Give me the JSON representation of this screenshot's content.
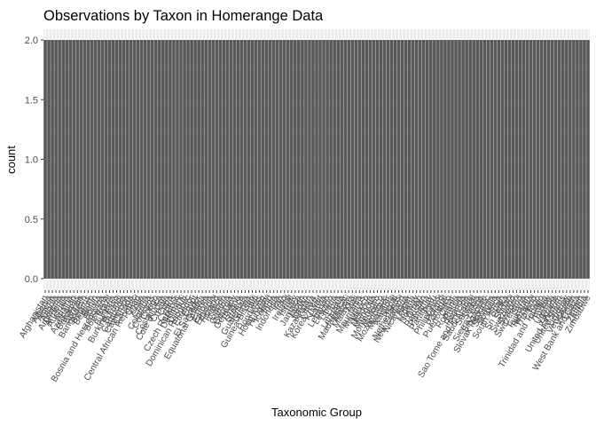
{
  "chart_data": {
    "type": "bar",
    "title": "Observations by Taxon in Homerange Data",
    "xlabel": "Taxonomic Group",
    "ylabel": "count",
    "ylim": [
      0,
      2
    ],
    "yticks": [
      "0.0",
      "0.5",
      "1.0",
      "1.5",
      "2.0"
    ],
    "grid": true,
    "categories": [
      "Afghanistan",
      "Albania",
      "Algeria",
      "Angola",
      "Argentina",
      "Armenia",
      "Australia",
      "Austria",
      "Azerbaijan",
      "Bahamas",
      "Bahrain",
      "Bangladesh",
      "Belarus",
      "Belgium",
      "Benin",
      "Bolivia",
      "Bosnia and Herzegovina",
      "Botswana",
      "Brazil",
      "Bulgaria",
      "Burkina Faso",
      "Burundi",
      "Cambodia",
      "Cameroon",
      "Canada",
      "Central African Republic",
      "Chad",
      "Chile",
      "China",
      "Colombia",
      "Comoros",
      "Congo",
      "Costa Rica",
      "Cote d'Ivoire",
      "Croatia",
      "Cuba",
      "Cyprus",
      "Czech Republic",
      "Denmark",
      "Djibouti",
      "Dominican Republic",
      "Ecuador",
      "Egypt",
      "El Salvador",
      "Equatorial Guinea",
      "Eritrea",
      "Estonia",
      "Ethiopia",
      "Finland",
      "France",
      "Gabon",
      "Gambia",
      "Georgia",
      "Germany",
      "Ghana",
      "Greece",
      "Guatemala",
      "Guinea",
      "Guinea-Bissau",
      "Haiti",
      "Honduras",
      "Hong Kong",
      "Hungary",
      "Iceland",
      "India",
      "Indonesia",
      "Iran",
      "Iraq",
      "Ireland",
      "Israel",
      "Italy",
      "Jamaica",
      "Japan",
      "Jordan",
      "Kazakhstan",
      "Kenya",
      "Korea, Rep.",
      "Kuwait",
      "Latvia",
      "Lebanon",
      "Lesotho",
      "Liberia",
      "Libya",
      "Lithuania",
      "Madagascar",
      "Malawi",
      "Malaysia",
      "Mali",
      "Mauritania",
      "Mauritius",
      "Mexico",
      "Moldova",
      "Mongolia",
      "Montenegro",
      "Morocco",
      "Mozambique",
      "Myanmar",
      "Namibia",
      "Nepal",
      "Netherlands",
      "New Zealand",
      "Nicaragua",
      "Niger",
      "Nigeria",
      "Norway",
      "Oman",
      "Pakistan",
      "Panama",
      "Paraguay",
      "Peru",
      "Philippines",
      "Poland",
      "Portugal",
      "Puerto Rico",
      "Qatar",
      "Romania",
      "Russia",
      "Rwanda",
      "Sao Tome and Principe",
      "Saudi Arabia",
      "Senegal",
      "Serbia",
      "Sierra Leone",
      "Singapore",
      "Slovak Republic",
      "Slovenia",
      "Somalia",
      "South Africa",
      "Spain",
      "Sri Lanka",
      "Sudan",
      "Swaziland",
      "Sweden",
      "Switzerland",
      "Syria",
      "Tajikistan",
      "Tanzania",
      "Thailand",
      "Togo",
      "Trinidad and Tobago",
      "Tunisia",
      "Turkey",
      "Uganda",
      "Ukraine",
      "United Kingdom",
      "United States",
      "Uruguay",
      "Venezuela",
      "Vietnam",
      "West Bank and Gaza",
      "Yemen",
      "Zambia",
      "Zimbabwe"
    ],
    "values": [
      2,
      2,
      2,
      2,
      2,
      2,
      2,
      2,
      2,
      2,
      2,
      2,
      2,
      2,
      2,
      2,
      2,
      2,
      2,
      2,
      2,
      2,
      2,
      2,
      2,
      2,
      2,
      2,
      2,
      2,
      2,
      2,
      2,
      2,
      2,
      2,
      2,
      2,
      2,
      2,
      2,
      2,
      2,
      2,
      2,
      2,
      2,
      2,
      2,
      2,
      2,
      2,
      2,
      2,
      2,
      2,
      2,
      2,
      2,
      2,
      2,
      2,
      2,
      2,
      2,
      2,
      2,
      2,
      2,
      2,
      2,
      2,
      2,
      2,
      2,
      2,
      2,
      2,
      2,
      2,
      2,
      2,
      2,
      2,
      2,
      2,
      2,
      2,
      2,
      2,
      2,
      2,
      2,
      2,
      2,
      2,
      2,
      2,
      2,
      2,
      2,
      2,
      2,
      2,
      2,
      2,
      2,
      2,
      2,
      2,
      2,
      2,
      2,
      2,
      2,
      2,
      2,
      2,
      2,
      2,
      2,
      2,
      2,
      2,
      2,
      2,
      2,
      2,
      2,
      2,
      2,
      2,
      2,
      2,
      2,
      2,
      2,
      2,
      2,
      2,
      2,
      2,
      2,
      2,
      2,
      2,
      2,
      2,
      2,
      2,
      2,
      2,
      2
    ]
  },
  "colors": {
    "bar": "#595959",
    "panel": "#ebebeb",
    "grid_major": "#ffffff",
    "tick_text": "#4d4d4d"
  }
}
